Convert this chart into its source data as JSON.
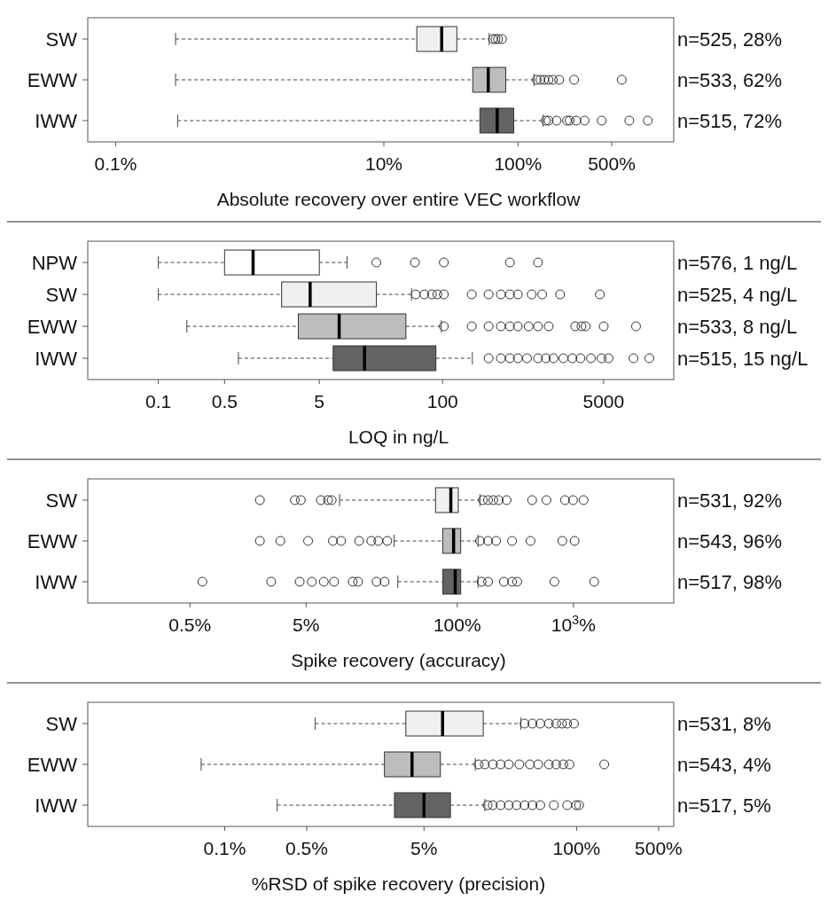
{
  "chart_data": [
    {
      "type": "box",
      "orientation": "horizontal",
      "log": "x",
      "xlabel": "Absolute recovery over entire VEC workflow",
      "categories": [
        "SW",
        "EWW",
        "IWW"
      ],
      "colors": [
        "#f0f0f0",
        "#bdbdbd",
        "#636363"
      ],
      "xlim": [
        0.062,
        1450
      ],
      "xticks": [
        {
          "value": 0.1,
          "label": "0.1%"
        },
        {
          "value": 10,
          "label": "10%"
        },
        {
          "value": 100,
          "label": "100%"
        },
        {
          "value": 500,
          "label": "500%"
        }
      ],
      "annotations": [
        "n=525, 28%",
        "n=533, 62%",
        "n=515, 72%"
      ],
      "boxes": [
        {
          "low": 0.28,
          "q1": 17.6,
          "median": 27,
          "q3": 35,
          "high": 61,
          "outliers": [
            65,
            68,
            71,
            76
          ]
        },
        {
          "low": 0.28,
          "q1": 46,
          "median": 60,
          "q3": 81,
          "high": 132,
          "outliers": [
            138,
            147,
            157,
            169,
            182,
            203,
            262,
            594
          ]
        },
        {
          "low": 0.29,
          "q1": 52,
          "median": 70,
          "q3": 93,
          "high": 154,
          "outliers": [
            161,
            169,
            194,
            232,
            243,
            272,
            314,
            421,
            676,
            929
          ]
        }
      ]
    },
    {
      "type": "box",
      "orientation": "horizontal",
      "log": "x",
      "xlabel": "LOQ in ng/L",
      "categories": [
        "NPW",
        "SW",
        "EWW",
        "IWW"
      ],
      "colors": [
        "#ffffff",
        "#f0f0f0",
        "#bdbdbd",
        "#636363"
      ],
      "xlim": [
        0.018,
        27500
      ],
      "xticks": [
        0.1,
        0.5,
        5,
        100,
        5000
      ],
      "annotations": [
        "n=576, 1 ng/L",
        "n=525, 4 ng/L",
        "n=533, 8 ng/L",
        "n=515, 15 ng/L"
      ],
      "boxes": [
        {
          "low": 0.1,
          "q1": 0.5,
          "median": 1,
          "q3": 5,
          "high": 9.8,
          "outliers": [
            20,
            51,
            103,
            513,
            1016
          ]
        },
        {
          "low": 0.1,
          "q1": 2,
          "median": 4,
          "q3": 20,
          "high": 47,
          "outliers": [
            52,
            64,
            77,
            88,
            103,
            203,
            306,
            412,
            513,
            622,
            871,
            1124,
            1738,
            4570
          ]
        },
        {
          "low": 0.2,
          "q1": 3,
          "median": 8.1,
          "q3": 41,
          "high": 97,
          "outliers": [
            103,
            203,
            306,
            412,
            513,
            622,
            809,
            1016,
            1318,
            2512,
            2924,
            3236,
            5012,
            11000
          ]
        },
        {
          "low": 0.7,
          "q1": 7,
          "median": 15,
          "q3": 85,
          "high": 206,
          "outliers": [
            306,
            412,
            513,
            622,
            777,
            1016,
            1230,
            1480,
            1884,
            2344,
            2850,
            3680,
            4764,
            5630,
            10350,
            15200
          ]
        }
      ]
    },
    {
      "type": "box",
      "orientation": "horizontal",
      "log": "x",
      "xlabel": "Spike recovery (accuracy)",
      "categories": [
        "SW",
        "EWW",
        "IWW"
      ],
      "colors": [
        "#f0f0f0",
        "#bdbdbd",
        "#636363"
      ],
      "xlim": [
        0.066,
        7300
      ],
      "xticks": [
        {
          "value": 0.5,
          "label": "0.5%"
        },
        {
          "value": 5,
          "label": "5%"
        },
        {
          "value": 100,
          "label": "100%"
        },
        {
          "value": 1000,
          "label": "10$^{3}$%"
        }
      ],
      "annotations": [
        "n=531, 92%",
        "n=543, 96%",
        "n=517, 98%"
      ],
      "boxes": [
        {
          "low": 9.7,
          "q1": 65,
          "median": 88,
          "q3": 102,
          "high": 157,
          "outliers": [
            2,
            4,
            4.5,
            6.7,
            7.7,
            8.3,
            166,
            184,
            204,
            227,
            266,
            441,
            586,
            846,
            991,
            1222
          ]
        },
        {
          "low": 28.6,
          "q1": 75,
          "median": 93,
          "q3": 107,
          "high": 151,
          "outliers": [
            2,
            3,
            5.2,
            8.5,
            10,
            14.3,
            18.2,
            20.9,
            25,
            157,
            184,
            216,
            296,
            427,
            802,
            1023
          ]
        },
        {
          "low": 30.8,
          "q1": 75,
          "median": 96,
          "q3": 107,
          "high": 151,
          "outliers": [
            0.64,
            2.5,
            4.4,
            5.6,
            7.1,
            8.7,
            12.6,
            14,
            20.2,
            23.7,
            162,
            184,
            252,
            296,
            328,
            686,
            1507
          ]
        }
      ]
    },
    {
      "type": "box",
      "orientation": "horizontal",
      "log": "x",
      "xlabel": "%RSD of spike recovery (precision)",
      "categories": [
        "SW",
        "EWW",
        "IWW"
      ],
      "colors": [
        "#f0f0f0",
        "#bdbdbd",
        "#636363"
      ],
      "xlim": [
        0.0068,
        673
      ],
      "xticks": [
        {
          "value": 0.1,
          "label": "0.1%"
        },
        {
          "value": 0.5,
          "label": "0.5%"
        },
        {
          "value": 5,
          "label": "5%"
        },
        {
          "value": 100,
          "label": "100%"
        },
        {
          "value": 500,
          "label": "500%"
        }
      ],
      "annotations": [
        "n=531, 8%",
        "n=543, 4%",
        "n=517, 5%"
      ],
      "boxes": [
        {
          "low": 0.59,
          "q1": 3.5,
          "median": 7.2,
          "q3": 16,
          "high": 33.5,
          "outliers": [
            36,
            42,
            49,
            58,
            67,
            75,
            83,
            95
          ]
        },
        {
          "low": 0.063,
          "q1": 2.3,
          "median": 3.95,
          "q3": 6.9,
          "high": 13.7,
          "outliers": [
            14.6,
            16.5,
            19.3,
            22.5,
            26.4,
            32.5,
            40,
            47,
            58,
            67,
            77,
            87,
            172
          ]
        },
        {
          "low": 0.28,
          "q1": 2.8,
          "median": 5,
          "q3": 8.4,
          "high": 16.5,
          "outliers": [
            17.4,
            19.3,
            22.5,
            26.4,
            30.8,
            36,
            42,
            49,
            64,
            83,
            99,
            105
          ]
        }
      ]
    }
  ]
}
